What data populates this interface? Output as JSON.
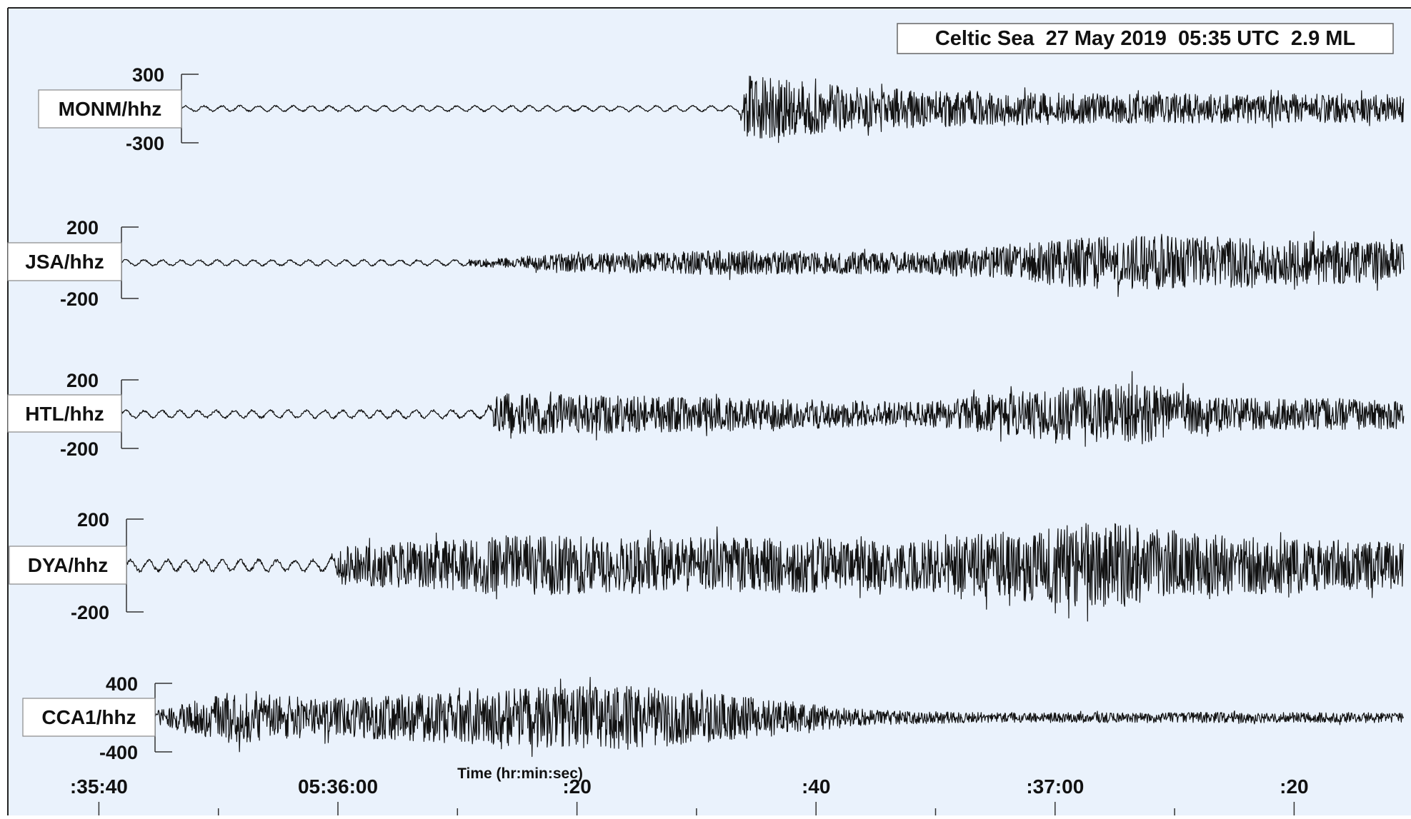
{
  "chart_data": {
    "type": "line",
    "title": "Celtic Sea  27 May 2019  05:35 UTC  2.9 ML",
    "xlabel": "Time (hr:min:sec)",
    "x_ticks": [
      ":35:40",
      "05:36:00",
      ":20",
      ":40",
      ":37:00",
      ":20"
    ],
    "x_range": [
      "05:35:34",
      "05:37:27"
    ],
    "grid": false,
    "colors": {
      "background": "#eaf2fc",
      "trace": "#111111",
      "border": "#222222"
    },
    "series": [
      {
        "name": "MONM/hhz",
        "ylim": [
          -300,
          300
        ],
        "y_ticks": [
          "300",
          "-300"
        ],
        "onset_seconds": 60,
        "envelope": [
          [
            0,
            30
          ],
          [
            59.5,
            30
          ],
          [
            60,
            300
          ],
          [
            63,
            260
          ],
          [
            70,
            180
          ],
          [
            90,
            130
          ],
          [
            120,
            130
          ]
        ]
      },
      {
        "name": "JSA/hhz",
        "ylim": [
          -200,
          200
        ],
        "y_ticks": [
          "200",
          "-200"
        ],
        "onset_seconds": 37,
        "envelope": [
          [
            0,
            20
          ],
          [
            37,
            20
          ],
          [
            45,
            50
          ],
          [
            58,
            70
          ],
          [
            75,
            60
          ],
          [
            90,
            150
          ],
          [
            95,
            160
          ],
          [
            110,
            120
          ],
          [
            120,
            110
          ]
        ]
      },
      {
        "name": "HTL/hhz",
        "ylim": [
          -200,
          200
        ],
        "y_ticks": [
          "200",
          "-200"
        ],
        "onset_seconds": 39,
        "envelope": [
          [
            0,
            25
          ],
          [
            38,
            30
          ],
          [
            40,
            120
          ],
          [
            50,
            110
          ],
          [
            75,
            70
          ],
          [
            85,
            150
          ],
          [
            93,
            180
          ],
          [
            100,
            100
          ],
          [
            120,
            80
          ]
        ]
      },
      {
        "name": "DYA/hhz",
        "ylim": [
          -200,
          200
        ],
        "y_ticks": [
          "200",
          "-200"
        ],
        "onset_seconds": 26,
        "envelope": [
          [
            0,
            30
          ],
          [
            25,
            30
          ],
          [
            26,
            80
          ],
          [
            40,
            130
          ],
          [
            60,
            120
          ],
          [
            75,
            110
          ],
          [
            90,
            190
          ],
          [
            100,
            130
          ],
          [
            120,
            90
          ]
        ]
      },
      {
        "name": "CCA1/hhz",
        "ylim": [
          -400,
          400
        ],
        "y_ticks": [
          "400",
          "-400"
        ],
        "onset_seconds": 11,
        "envelope": [
          [
            0,
            15
          ],
          [
            10,
            15
          ],
          [
            11,
            90
          ],
          [
            17,
            300
          ],
          [
            25,
            220
          ],
          [
            42,
            350
          ],
          [
            50,
            380
          ],
          [
            60,
            250
          ],
          [
            70,
            90
          ],
          [
            80,
            60
          ],
          [
            120,
            60
          ]
        ]
      }
    ]
  }
}
